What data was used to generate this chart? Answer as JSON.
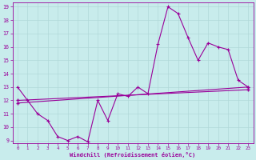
{
  "xlabel": "Windchill (Refroidissement éolien,°C)",
  "xlim": [
    -0.5,
    23.5
  ],
  "ylim": [
    8.8,
    19.3
  ],
  "yticks": [
    9,
    10,
    11,
    12,
    13,
    14,
    15,
    16,
    17,
    18,
    19
  ],
  "xticks": [
    0,
    1,
    2,
    3,
    4,
    5,
    6,
    7,
    8,
    9,
    10,
    11,
    12,
    13,
    14,
    15,
    16,
    17,
    18,
    19,
    20,
    21,
    22,
    23
  ],
  "bg_color": "#c8ecec",
  "line_color": "#990099",
  "grid_color": "#b0d8d8",
  "line1_x": [
    0,
    1,
    2,
    3,
    4,
    5,
    6,
    7,
    8,
    9,
    10,
    11,
    12,
    13,
    14,
    15,
    16,
    17,
    18,
    19,
    20,
    21,
    22,
    23
  ],
  "line1_y": [
    13.0,
    12.0,
    11.0,
    10.5,
    9.3,
    9.0,
    9.3,
    8.9,
    12.0,
    10.5,
    12.5,
    12.3,
    13.0,
    12.5,
    16.2,
    19.0,
    18.5,
    16.7,
    15.0,
    16.3,
    16.0,
    15.8,
    13.5,
    13.0
  ],
  "line2_x": [
    0,
    23
  ],
  "line2_y": [
    11.8,
    13.0
  ],
  "line3_x": [
    0,
    23
  ],
  "line3_y": [
    12.0,
    12.8
  ]
}
